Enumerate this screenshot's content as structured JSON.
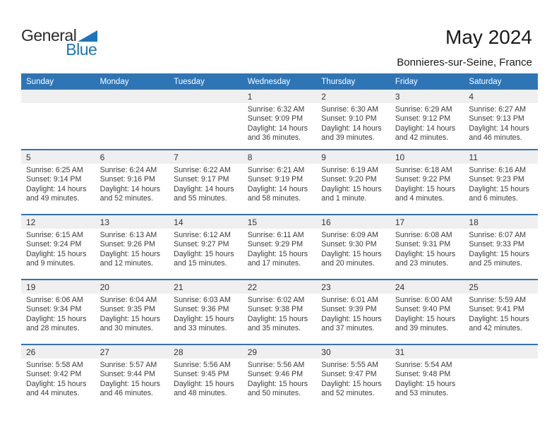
{
  "logo": {
    "line1": "General",
    "line2": "Blue"
  },
  "title": "May 2024",
  "location": "Bonnieres-sur-Seine, France",
  "colors": {
    "header_blue": "#2E75B6",
    "band_gray": "#EFEFEF",
    "logo_blue": "#1B75BC",
    "text_dark": "#3C3C3C"
  },
  "day_headers": [
    "Sunday",
    "Monday",
    "Tuesday",
    "Wednesday",
    "Thursday",
    "Friday",
    "Saturday"
  ],
  "weeks": [
    {
      "cells": [
        null,
        null,
        null,
        {
          "date": "1",
          "sunrise": "Sunrise: 6:32 AM",
          "sunset": "Sunset: 9:09 PM",
          "daylight": "Daylight: 14 hours and 36 minutes."
        },
        {
          "date": "2",
          "sunrise": "Sunrise: 6:30 AM",
          "sunset": "Sunset: 9:10 PM",
          "daylight": "Daylight: 14 hours and 39 minutes."
        },
        {
          "date": "3",
          "sunrise": "Sunrise: 6:29 AM",
          "sunset": "Sunset: 9:12 PM",
          "daylight": "Daylight: 14 hours and 42 minutes."
        },
        {
          "date": "4",
          "sunrise": "Sunrise: 6:27 AM",
          "sunset": "Sunset: 9:13 PM",
          "daylight": "Daylight: 14 hours and 46 minutes."
        }
      ]
    },
    {
      "cells": [
        {
          "date": "5",
          "sunrise": "Sunrise: 6:25 AM",
          "sunset": "Sunset: 9:14 PM",
          "daylight": "Daylight: 14 hours and 49 minutes."
        },
        {
          "date": "6",
          "sunrise": "Sunrise: 6:24 AM",
          "sunset": "Sunset: 9:16 PM",
          "daylight": "Daylight: 14 hours and 52 minutes."
        },
        {
          "date": "7",
          "sunrise": "Sunrise: 6:22 AM",
          "sunset": "Sunset: 9:17 PM",
          "daylight": "Daylight: 14 hours and 55 minutes."
        },
        {
          "date": "8",
          "sunrise": "Sunrise: 6:21 AM",
          "sunset": "Sunset: 9:19 PM",
          "daylight": "Daylight: 14 hours and 58 minutes."
        },
        {
          "date": "9",
          "sunrise": "Sunrise: 6:19 AM",
          "sunset": "Sunset: 9:20 PM",
          "daylight": "Daylight: 15 hours and 1 minute."
        },
        {
          "date": "10",
          "sunrise": "Sunrise: 6:18 AM",
          "sunset": "Sunset: 9:22 PM",
          "daylight": "Daylight: 15 hours and 4 minutes."
        },
        {
          "date": "11",
          "sunrise": "Sunrise: 6:16 AM",
          "sunset": "Sunset: 9:23 PM",
          "daylight": "Daylight: 15 hours and 6 minutes."
        }
      ]
    },
    {
      "cells": [
        {
          "date": "12",
          "sunrise": "Sunrise: 6:15 AM",
          "sunset": "Sunset: 9:24 PM",
          "daylight": "Daylight: 15 hours and 9 minutes."
        },
        {
          "date": "13",
          "sunrise": "Sunrise: 6:13 AM",
          "sunset": "Sunset: 9:26 PM",
          "daylight": "Daylight: 15 hours and 12 minutes."
        },
        {
          "date": "14",
          "sunrise": "Sunrise: 6:12 AM",
          "sunset": "Sunset: 9:27 PM",
          "daylight": "Daylight: 15 hours and 15 minutes."
        },
        {
          "date": "15",
          "sunrise": "Sunrise: 6:11 AM",
          "sunset": "Sunset: 9:29 PM",
          "daylight": "Daylight: 15 hours and 17 minutes."
        },
        {
          "date": "16",
          "sunrise": "Sunrise: 6:09 AM",
          "sunset": "Sunset: 9:30 PM",
          "daylight": "Daylight: 15 hours and 20 minutes."
        },
        {
          "date": "17",
          "sunrise": "Sunrise: 6:08 AM",
          "sunset": "Sunset: 9:31 PM",
          "daylight": "Daylight: 15 hours and 23 minutes."
        },
        {
          "date": "18",
          "sunrise": "Sunrise: 6:07 AM",
          "sunset": "Sunset: 9:33 PM",
          "daylight": "Daylight: 15 hours and 25 minutes."
        }
      ]
    },
    {
      "cells": [
        {
          "date": "19",
          "sunrise": "Sunrise: 6:06 AM",
          "sunset": "Sunset: 9:34 PM",
          "daylight": "Daylight: 15 hours and 28 minutes."
        },
        {
          "date": "20",
          "sunrise": "Sunrise: 6:04 AM",
          "sunset": "Sunset: 9:35 PM",
          "daylight": "Daylight: 15 hours and 30 minutes."
        },
        {
          "date": "21",
          "sunrise": "Sunrise: 6:03 AM",
          "sunset": "Sunset: 9:36 PM",
          "daylight": "Daylight: 15 hours and 33 minutes."
        },
        {
          "date": "22",
          "sunrise": "Sunrise: 6:02 AM",
          "sunset": "Sunset: 9:38 PM",
          "daylight": "Daylight: 15 hours and 35 minutes."
        },
        {
          "date": "23",
          "sunrise": "Sunrise: 6:01 AM",
          "sunset": "Sunset: 9:39 PM",
          "daylight": "Daylight: 15 hours and 37 minutes."
        },
        {
          "date": "24",
          "sunrise": "Sunrise: 6:00 AM",
          "sunset": "Sunset: 9:40 PM",
          "daylight": "Daylight: 15 hours and 39 minutes."
        },
        {
          "date": "25",
          "sunrise": "Sunrise: 5:59 AM",
          "sunset": "Sunset: 9:41 PM",
          "daylight": "Daylight: 15 hours and 42 minutes."
        }
      ]
    },
    {
      "cells": [
        {
          "date": "26",
          "sunrise": "Sunrise: 5:58 AM",
          "sunset": "Sunset: 9:42 PM",
          "daylight": "Daylight: 15 hours and 44 minutes."
        },
        {
          "date": "27",
          "sunrise": "Sunrise: 5:57 AM",
          "sunset": "Sunset: 9:44 PM",
          "daylight": "Daylight: 15 hours and 46 minutes."
        },
        {
          "date": "28",
          "sunrise": "Sunrise: 5:56 AM",
          "sunset": "Sunset: 9:45 PM",
          "daylight": "Daylight: 15 hours and 48 minutes."
        },
        {
          "date": "29",
          "sunrise": "Sunrise: 5:56 AM",
          "sunset": "Sunset: 9:46 PM",
          "daylight": "Daylight: 15 hours and 50 minutes."
        },
        {
          "date": "30",
          "sunrise": "Sunrise: 5:55 AM",
          "sunset": "Sunset: 9:47 PM",
          "daylight": "Daylight: 15 hours and 52 minutes."
        },
        {
          "date": "31",
          "sunrise": "Sunrise: 5:54 AM",
          "sunset": "Sunset: 9:48 PM",
          "daylight": "Daylight: 15 hours and 53 minutes."
        },
        null
      ]
    }
  ]
}
